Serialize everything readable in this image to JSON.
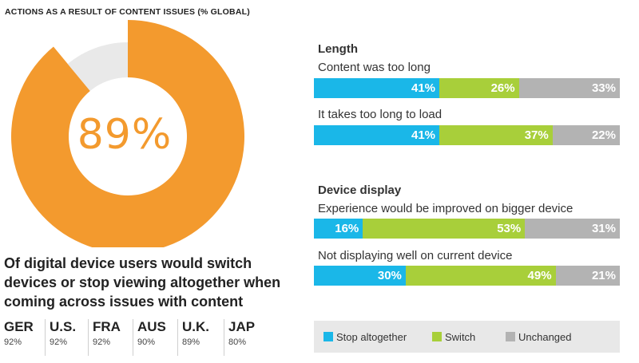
{
  "header": "ACTIONS AS A RESULT OF CONTENT ISSUES (% GLOBAL)",
  "colors": {
    "orange": "#f39a2e",
    "donut_bg": "#e9e9e9",
    "stop": "#1ab7e8",
    "switch": "#a8cf3a",
    "unchanged": "#b3b3b3"
  },
  "donut": {
    "value_label": "89%",
    "value": 89
  },
  "caption": "Of digital device users would switch devices or stop viewing altogether when coming across issues with content",
  "countries": [
    {
      "name": "GER",
      "value": "92%"
    },
    {
      "name": "U.S.",
      "value": "92%"
    },
    {
      "name": "FRA",
      "value": "92%"
    },
    {
      "name": "AUS",
      "value": "90%"
    },
    {
      "name": "U.K.",
      "value": "89%"
    },
    {
      "name": "JAP",
      "value": "80%"
    }
  ],
  "chart_data": [
    {
      "type": "pie",
      "title": "ACTIONS AS A RESULT OF CONTENT ISSUES (% GLOBAL)",
      "values": [
        89,
        11
      ],
      "labels": [
        "89%",
        ""
      ]
    },
    {
      "type": "bar",
      "orientation": "horizontal-stacked",
      "groups": [
        {
          "title": "Length",
          "items": [
            {
              "label": "Content was too long",
              "values": [
                41,
                26,
                33
              ],
              "value_labels": [
                "41%",
                "26%",
                "33%"
              ]
            },
            {
              "label": "It takes too long to load",
              "values": [
                41,
                37,
                22
              ],
              "value_labels": [
                "41%",
                "37%",
                "22%"
              ]
            }
          ]
        },
        {
          "title": "Device display",
          "items": [
            {
              "label": "Experience would be improved on bigger device",
              "values": [
                16,
                53,
                31
              ],
              "value_labels": [
                "16%",
                "53%",
                "31%"
              ]
            },
            {
              "label": "Not displaying well on current device",
              "values": [
                30,
                49,
                21
              ],
              "value_labels": [
                "30%",
                "49%",
                "21%"
              ]
            }
          ]
        }
      ],
      "series": [
        {
          "name": "Stop altogether"
        },
        {
          "name": "Switch"
        },
        {
          "name": "Unchanged"
        }
      ],
      "legend": "bottom"
    }
  ]
}
